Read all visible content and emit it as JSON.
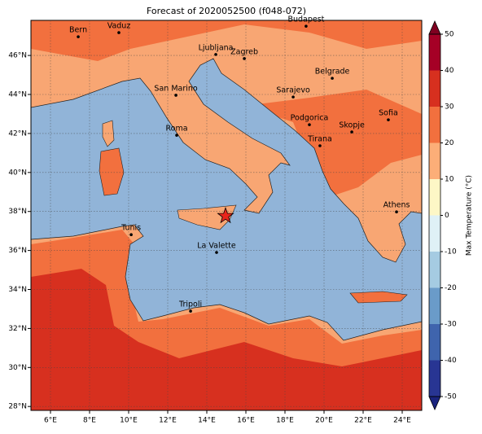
{
  "chart_data": {
    "type": "map",
    "title": "Forecast of 2020052500 (f048-072)",
    "xlim": [
      5,
      25
    ],
    "ylim": [
      27.8,
      47.8
    ],
    "xticks": [
      {
        "value": 6,
        "label": "6°E"
      },
      {
        "value": 8,
        "label": "8°E"
      },
      {
        "value": 10,
        "label": "10°E"
      },
      {
        "value": 12,
        "label": "12°E"
      },
      {
        "value": 14,
        "label": "14°E"
      },
      {
        "value": 16,
        "label": "16°E"
      },
      {
        "value": 18,
        "label": "18°E"
      },
      {
        "value": 20,
        "label": "20°E"
      },
      {
        "value": 22,
        "label": "22°E"
      },
      {
        "value": 24,
        "label": "24°E"
      }
    ],
    "yticks": [
      {
        "value": 28,
        "label": "28°N"
      },
      {
        "value": 30,
        "label": "30°N"
      },
      {
        "value": 32,
        "label": "32°N"
      },
      {
        "value": 34,
        "label": "34°N"
      },
      {
        "value": 36,
        "label": "36°N"
      },
      {
        "value": 38,
        "label": "38°N"
      },
      {
        "value": 40,
        "label": "40°N"
      },
      {
        "value": 42,
        "label": "42°N"
      },
      {
        "value": 44,
        "label": "44°N"
      },
      {
        "value": 46,
        "label": "46°N"
      }
    ],
    "grid": true,
    "cities": [
      {
        "name": "Bern",
        "lon": 7.42,
        "lat": 46.96
      },
      {
        "name": "Vaduz",
        "lon": 9.5,
        "lat": 47.17
      },
      {
        "name": "Budapest",
        "lon": 19.08,
        "lat": 47.5
      },
      {
        "name": "Ljubljana",
        "lon": 14.46,
        "lat": 46.05
      },
      {
        "name": "Zagreb",
        "lon": 15.92,
        "lat": 45.84
      },
      {
        "name": "Belgrade",
        "lon": 20.42,
        "lat": 44.83
      },
      {
        "name": "San Marino",
        "lon": 12.42,
        "lat": 43.96
      },
      {
        "name": "Sarajevo",
        "lon": 18.42,
        "lat": 43.87
      },
      {
        "name": "Podgorica",
        "lon": 19.25,
        "lat": 42.45
      },
      {
        "name": "Sofia",
        "lon": 23.29,
        "lat": 42.7
      },
      {
        "name": "Skopje",
        "lon": 21.42,
        "lat": 42.08
      },
      {
        "name": "Roma",
        "lon": 12.46,
        "lat": 41.91
      },
      {
        "name": "Tirana",
        "lon": 19.79,
        "lat": 41.37
      },
      {
        "name": "Athens",
        "lon": 23.71,
        "lat": 37.98
      },
      {
        "name": "Tunis",
        "lon": 10.13,
        "lat": 36.81
      },
      {
        "name": "La Valette",
        "lon": 14.5,
        "lat": 35.9
      },
      {
        "name": "Tripoli",
        "lon": 13.17,
        "lat": 32.89
      }
    ],
    "highlight": {
      "lon": 14.96,
      "lat": 37.77,
      "color": "#e8251c"
    },
    "colorbar": {
      "label": "Max Temperature (°C)",
      "lim": [
        -50,
        50
      ],
      "ticks": [
        -50,
        -40,
        -30,
        -20,
        -10,
        0,
        10,
        20,
        30,
        40,
        50
      ],
      "colors": [
        "#283593",
        "#3f64ad",
        "#6a9bc9",
        "#a5cbe2",
        "#dff1f6",
        "#fdf7c6",
        "#fcae78",
        "#f2703e",
        "#d7301f",
        "#a50026"
      ],
      "under": "#1a237e",
      "over": "#7f0020"
    }
  }
}
